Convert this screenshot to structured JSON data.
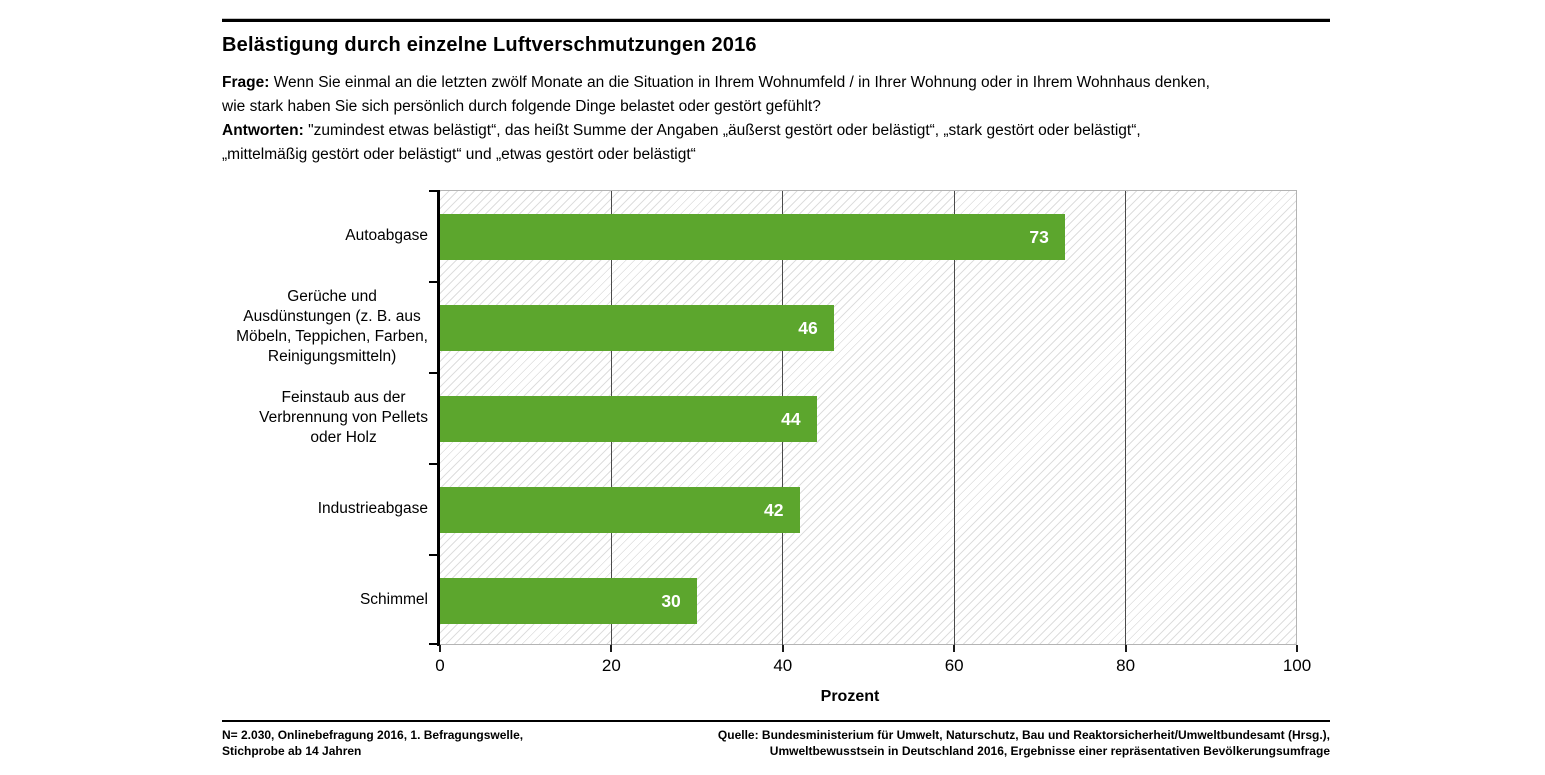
{
  "header": {
    "title": "Belästigung durch einzelne Luftverschmutzungen 2016"
  },
  "intro": {
    "frage_label": "Frage:",
    "frage_line1": "Wenn Sie einmal an die letzten zwölf Monate an die Situation in Ihrem Wohnumfeld / in Ihrer Wohnung oder in Ihrem Wohnhaus denken,",
    "frage_line2": "wie stark haben Sie sich persönlich durch folgende Dinge belastet oder gestört gefühlt?",
    "antworten_label": "Antworten:",
    "antworten_line1": "\"zumindest etwas belästigt“, das heißt Summe der Angaben „äußerst gestört oder belästigt“, „stark gestört oder belästigt“,",
    "antworten_line2": "„mittelmäßig gestört oder belästigt“ und „etwas gestört oder belästigt“"
  },
  "chart_data": {
    "type": "bar",
    "orientation": "horizontal",
    "title": "Belästigung durch einzelne Luftverschmutzungen 2016",
    "categories": [
      "Autoabgase",
      "Gerüche und Ausdünstungen (z. B. aus Möbeln, Teppichen, Farben, Reinigungsmitteln)",
      "Feinstaub aus der Verbrennung von Pellets oder Holz",
      "Industrieabgase",
      "Schimmel"
    ],
    "category_label_lines": [
      [
        "Autoabgase"
      ],
      [
        "Gerüche und",
        "Ausdünstungen (z. B. aus",
        "Möbeln, Teppichen, Farben,",
        "Reinigungsmitteln)"
      ],
      [
        "Feinstaub aus der",
        "Verbrennung von Pellets",
        "oder Holz"
      ],
      [
        "Industrieabgase"
      ],
      [
        "Schimmel"
      ]
    ],
    "values": [
      73,
      46,
      44,
      42,
      30
    ],
    "xlabel": "Prozent",
    "xlim": [
      0,
      100
    ],
    "xticks": [
      0,
      20,
      40,
      60,
      80,
      100
    ],
    "grid": true,
    "bar_color": "#5ca62d",
    "value_label_color": "#ffffff",
    "gridline_color": "#4a4a4a",
    "hatch_background": "diagonal-light-gray"
  },
  "footer": {
    "left_line1": "N= 2.030, Onlinebefragung 2016, 1. Befragungswelle,",
    "left_line2": "Stichprobe ab 14 Jahren",
    "right_line1": "Quelle: Bundesministerium für Umwelt, Naturschutz, Bau und Reaktorsicherheit/Umweltbundesamt (Hrsg.),",
    "right_line2": "Umweltbewusstsein in Deutschland 2016, Ergebnisse einer repräsentativen Bevölkerungsumfrage"
  }
}
